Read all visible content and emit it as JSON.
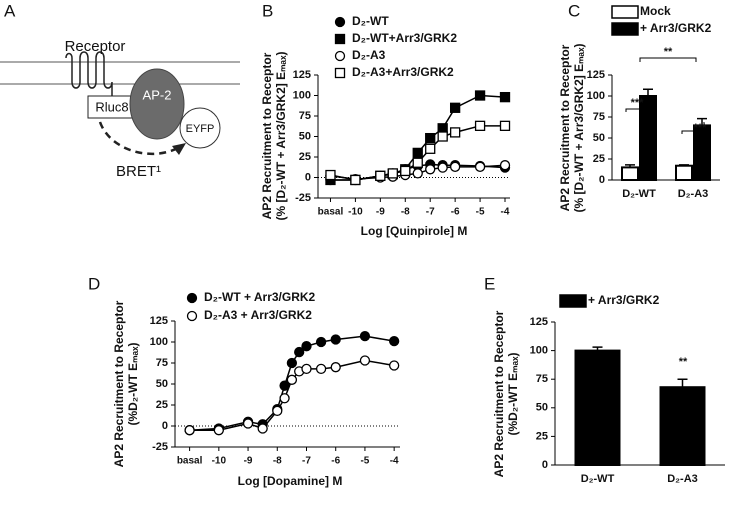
{
  "diagram": {
    "panel": "A",
    "receptor": "Receptor",
    "donor": "Rluc8",
    "adaptor": "AP-2",
    "acceptor": "EYFP",
    "signal": "BRET¹"
  },
  "chart_data": [
    {
      "panel": "B",
      "type": "line",
      "ylabel": [
        "AP2 Recruitment to Receptor",
        "(% [D₂-WT + Arr3/GRK2] Eₘₐₓ)"
      ],
      "xlabel": "Log [Quinpirole] M",
      "x": [
        -11,
        -10,
        -9,
        -8.5,
        -8,
        -7.5,
        -7,
        -6.5,
        -6,
        -5,
        -4
      ],
      "series": [
        {
          "name": "D₂-WT",
          "marker": "circle",
          "color": "#000000",
          "marker_fill": "#000000",
          "values": [
            -3,
            -3,
            2,
            5,
            10,
            14,
            16,
            15,
            15,
            14,
            12
          ]
        },
        {
          "name": "D₂-WT+Arr3/GRK2",
          "marker": "square",
          "color": "#000000",
          "marker_fill": "#000000",
          "values": [
            -3,
            -3,
            2,
            4,
            10,
            30,
            48,
            60,
            85,
            100,
            98
          ]
        },
        {
          "name": "D₂-A3",
          "marker": "circle",
          "color": "#000000",
          "marker_fill": "#ffffff",
          "values": [
            2,
            -2,
            0,
            1,
            3,
            5,
            10,
            12,
            13,
            13,
            15
          ]
        },
        {
          "name": "D₂-A3+Arr3/GRK2",
          "marker": "square",
          "color": "#000000",
          "marker_fill": "#ffffff",
          "values": [
            3,
            -3,
            2,
            5,
            8,
            18,
            35,
            50,
            55,
            63,
            63
          ]
        }
      ],
      "xlim": [
        -11.5,
        -3.8
      ],
      "ylim": [
        -25,
        125
      ],
      "xticks": [
        {
          "value": -11,
          "label": "basal"
        },
        -10,
        -9,
        -8,
        -7,
        -6,
        -5,
        -4
      ],
      "yticks": [
        -25,
        0,
        25,
        50,
        75,
        100,
        125
      ]
    },
    {
      "panel": "C",
      "type": "bar",
      "ylabel": [
        "AP2 Recruitment to Receptor",
        "(% [D₂-WT + Arr3/GRK2] Eₘₐₓ)"
      ],
      "categories": [
        "D₂-WT",
        "D₂-A3"
      ],
      "series": [
        {
          "name": "Mock",
          "color": "#ffffff",
          "values": [
            15,
            17
          ],
          "errors": [
            3,
            1
          ]
        },
        {
          "name": "+ Arr3/GRK2",
          "color": "#000000",
          "values": [
            100,
            65
          ],
          "errors": [
            8,
            8
          ]
        }
      ],
      "annotations": [
        "***",
        "***",
        "**"
      ],
      "ylim": [
        0,
        125
      ],
      "yticks": [
        0,
        25,
        50,
        75,
        100,
        125
      ]
    },
    {
      "panel": "D",
      "type": "line",
      "ylabel": [
        "AP2 Recruitment to Receptor",
        "(%D₂-WT Eₘₐₓ)"
      ],
      "xlabel": "Log [Dopamine] M",
      "x": [
        -11,
        -10,
        -9,
        -8.5,
        -8,
        -7.75,
        -7.5,
        -7.25,
        -7,
        -6.5,
        -6,
        -5,
        -4
      ],
      "series": [
        {
          "name": "D₂-WT + Arr3/GRK2",
          "marker": "circle",
          "color": "#000000",
          "marker_fill": "#000000",
          "values": [
            -5,
            -3,
            5,
            2,
            20,
            48,
            75,
            88,
            95,
            100,
            103,
            107,
            101
          ]
        },
        {
          "name": "D₂-A3 + Arr3/GRK2",
          "marker": "circle",
          "color": "#000000",
          "marker_fill": "#ffffff",
          "values": [
            -5,
            -5,
            3,
            -3,
            18,
            33,
            55,
            65,
            68,
            68,
            70,
            78,
            72
          ]
        }
      ],
      "xlim": [
        -11.5,
        -3.8
      ],
      "ylim": [
        -25,
        125
      ],
      "xticks": [
        {
          "value": -11,
          "label": "basal"
        },
        -10,
        -9,
        -8,
        -7,
        -6,
        -5,
        -4
      ],
      "yticks": [
        -25,
        0,
        25,
        50,
        75,
        100,
        125
      ]
    },
    {
      "panel": "E",
      "type": "bar",
      "ylabel": [
        "AP2 Recruitment to Receptor",
        "(%D₂-WT Eₘₐₓ)"
      ],
      "categories": [
        "D₂-WT",
        "D₂-A3"
      ],
      "series": [
        {
          "name": "+ Arr3/GRK2",
          "color": "#000000",
          "values": [
            100,
            68
          ],
          "errors": [
            3,
            7
          ]
        }
      ],
      "annotations": [
        "**"
      ],
      "ylim": [
        0,
        125
      ],
      "yticks": [
        0,
        25,
        50,
        75,
        100,
        125
      ]
    }
  ]
}
